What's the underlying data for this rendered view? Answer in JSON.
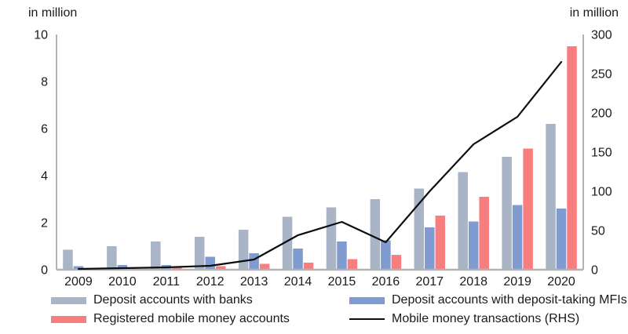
{
  "chart_data": {
    "type": "bar",
    "title": "",
    "left_axis_label": "in million",
    "right_axis_label": "in million",
    "categories": [
      "2009",
      "2010",
      "2011",
      "2012",
      "2013",
      "2014",
      "2015",
      "2016",
      "2017",
      "2018",
      "2019",
      "2020"
    ],
    "left_axis": {
      "min": 0,
      "max": 10,
      "ticks": [
        0,
        2,
        4,
        6,
        8,
        10
      ]
    },
    "right_axis": {
      "min": 0,
      "max": 300,
      "ticks": [
        0,
        50,
        100,
        150,
        200,
        250,
        300
      ]
    },
    "grid": false,
    "legend_position": "bottom",
    "series": [
      {
        "name": "Deposit accounts with banks",
        "type": "bar",
        "axis": "left",
        "color": "#a9b4c7",
        "values": [
          0.85,
          1.0,
          1.2,
          1.4,
          1.7,
          2.25,
          2.65,
          3.0,
          3.45,
          4.15,
          4.8,
          6.2
        ]
      },
      {
        "name": "Deposit accounts with deposit-taking MFIs",
        "type": "bar",
        "axis": "left",
        "color": "#7f9bd1",
        "values": [
          0.15,
          0.2,
          0.2,
          0.55,
          0.7,
          0.9,
          1.2,
          1.25,
          1.8,
          2.05,
          2.75,
          2.6
        ]
      },
      {
        "name": "Registered mobile money accounts",
        "type": "bar",
        "axis": "left",
        "color": "#f87d7e",
        "values": [
          0.03,
          0.1,
          0.12,
          0.15,
          0.25,
          0.3,
          0.45,
          0.63,
          2.3,
          3.1,
          5.15,
          9.5
        ]
      },
      {
        "name": "Mobile money transactions (RHS)",
        "type": "line",
        "axis": "right",
        "color": "#0d0d0d",
        "values": [
          1,
          2,
          3,
          5,
          13,
          44,
          61,
          35,
          100,
          160,
          195,
          265
        ]
      }
    ],
    "colors": {
      "axis_line": "#8a8a8a",
      "baseline": "#b3b3b3",
      "text": "#1a1a1a"
    }
  }
}
